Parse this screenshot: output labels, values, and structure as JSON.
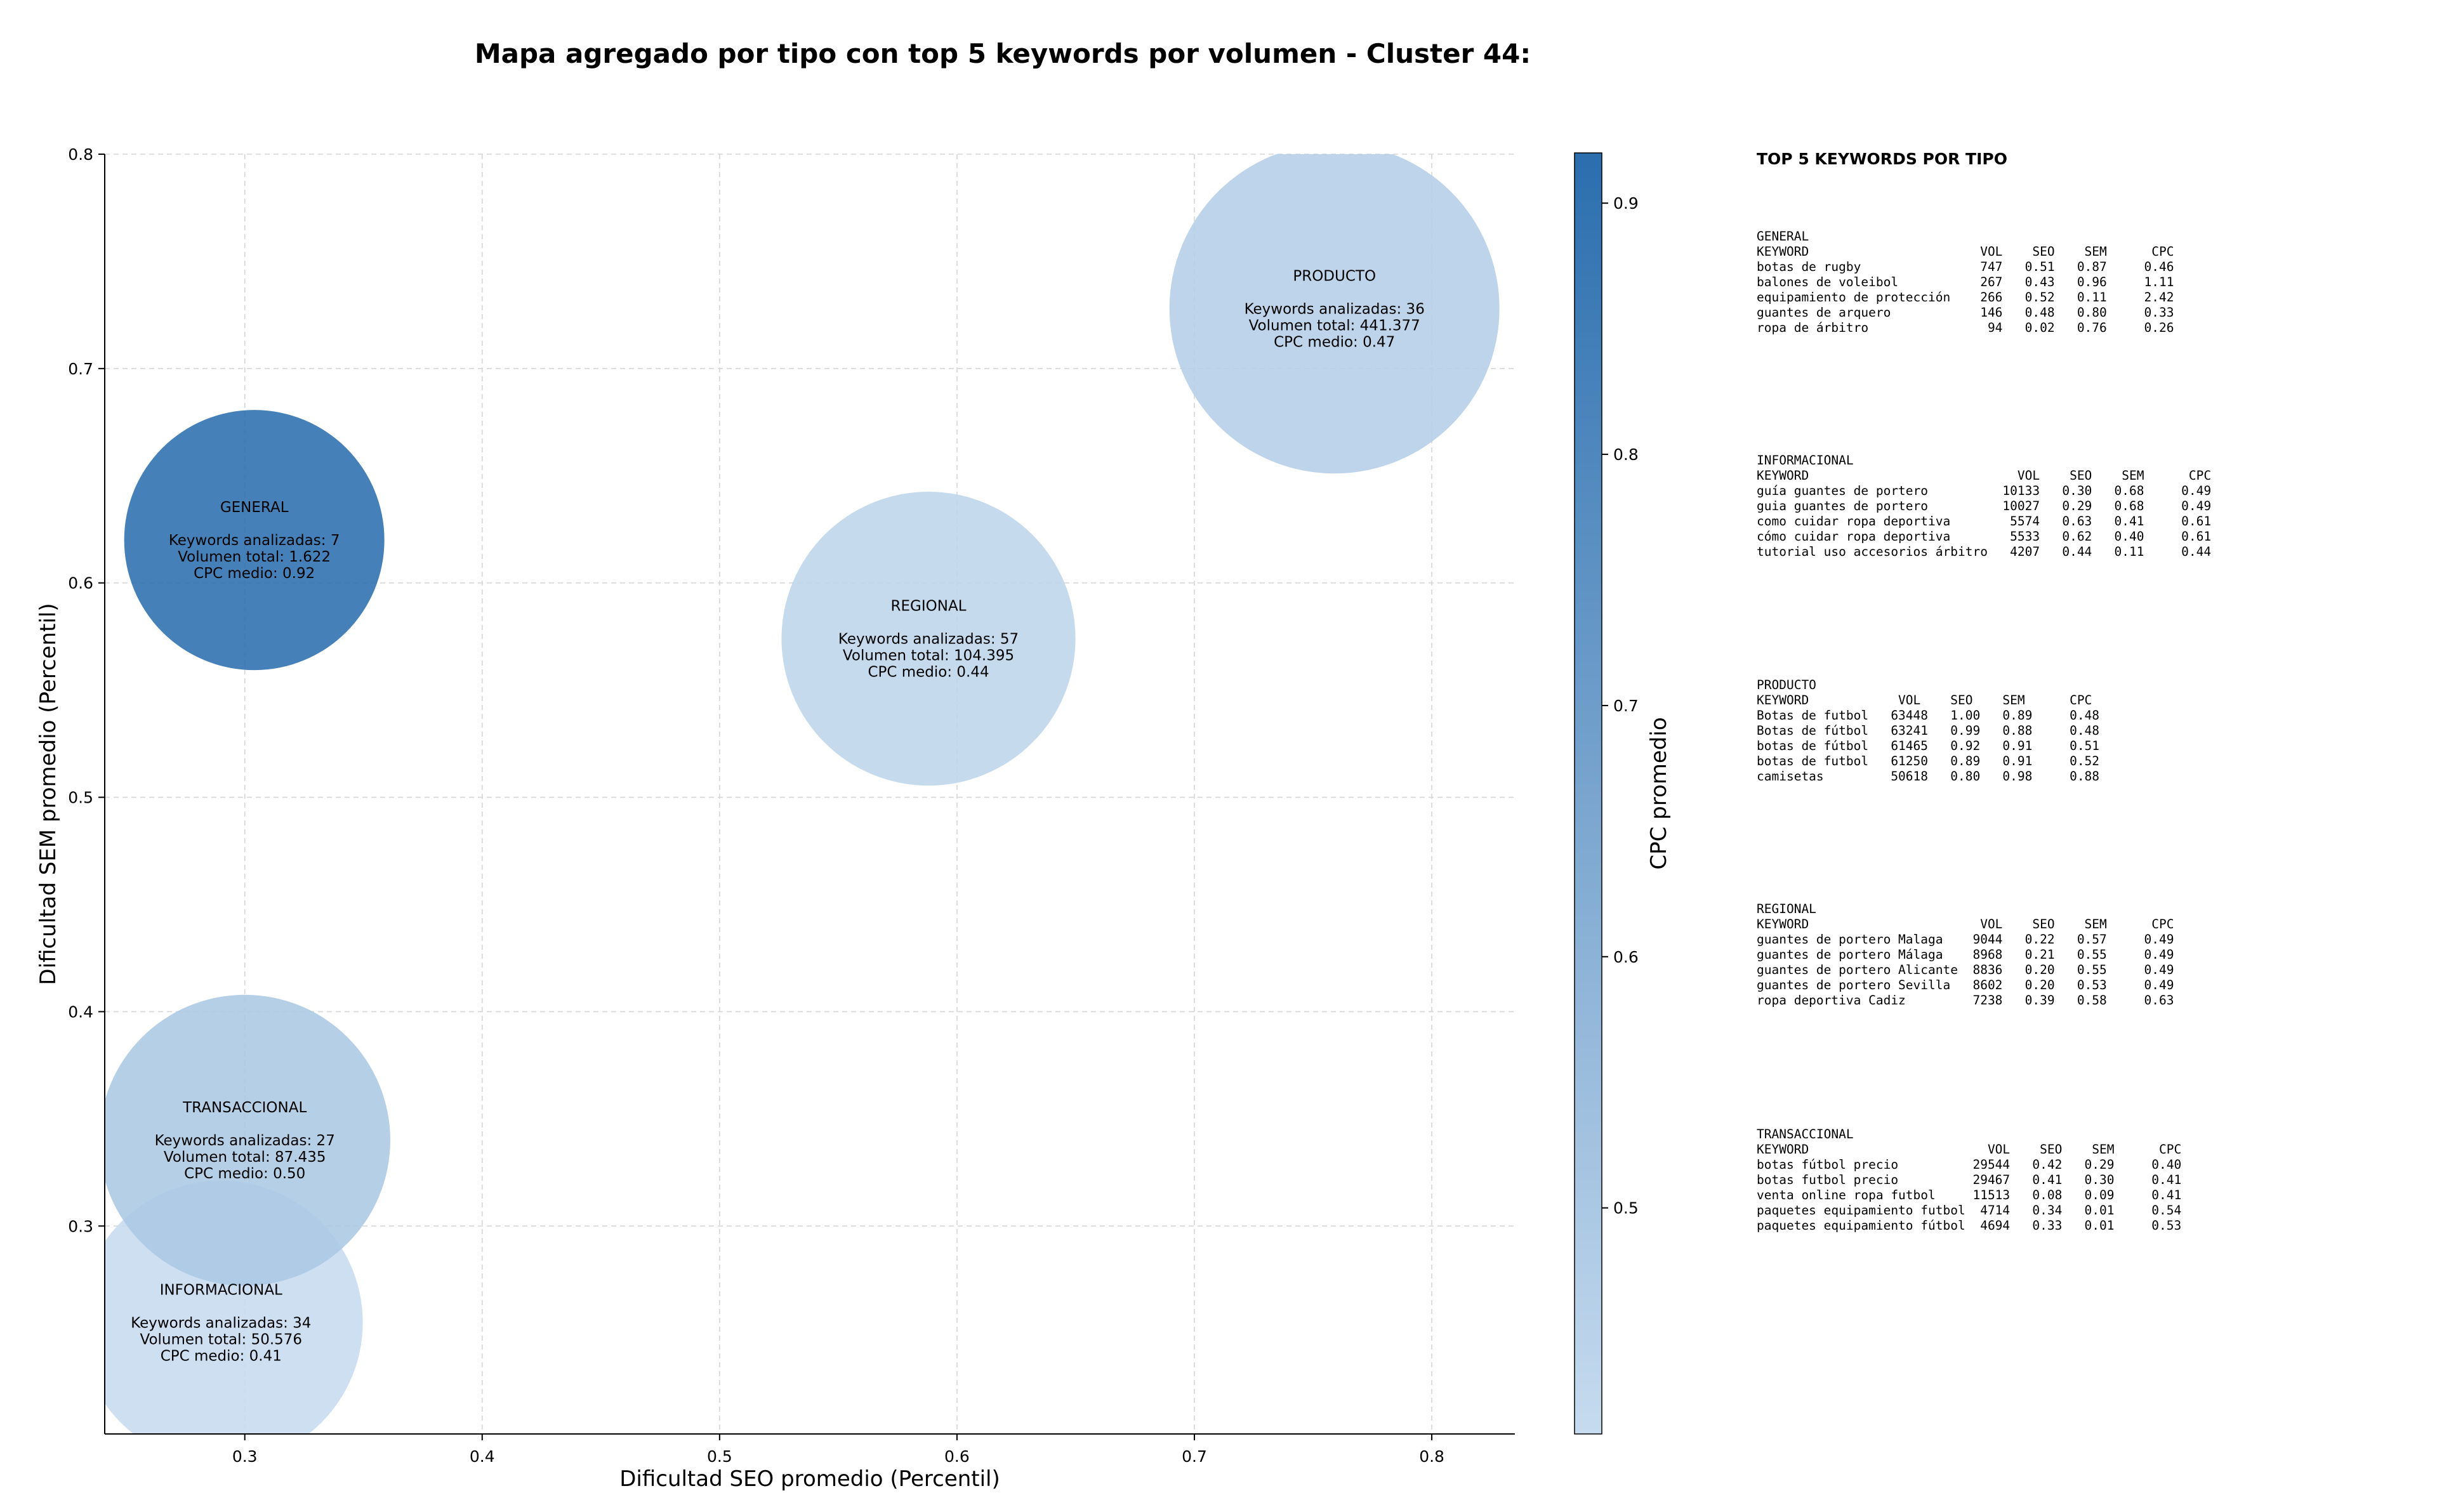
{
  "title": "Mapa agregado por tipo con top 5 keywords por volumen - Cluster 44:",
  "chart_data": {
    "type": "scatter",
    "variant": "bubble",
    "xlabel": "Dificultad SEO promedio (Percentil)",
    "ylabel": "Dificultad SEM promedio (Percentil)",
    "xlim": [
      0.241,
      0.835
    ],
    "ylim": [
      0.203,
      0.8
    ],
    "xticks": [
      "0.3",
      "0.4",
      "0.5",
      "0.6",
      "0.7",
      "0.8"
    ],
    "yticks": [
      "0.3",
      "0.4",
      "0.5",
      "0.6",
      "0.7",
      "0.8"
    ],
    "grid": true,
    "colorbar": {
      "label": "CPC promedio",
      "min": 0.41,
      "max": 0.92,
      "ticks": [
        "0.5",
        "0.6",
        "0.7",
        "0.8",
        "0.9"
      ],
      "colormap": "Blues",
      "light_color": "#c6dbef",
      "dark_color": "#2b6eae"
    },
    "points": [
      {
        "name": "GENERAL",
        "x": 0.304,
        "y": 0.62,
        "keywords": 7,
        "volume": 1622,
        "cpc": 0.92,
        "label_lines": [
          "GENERAL",
          "",
          "Keywords analizadas: 7",
          "Volumen total: 1.622",
          "CPC medio: 0.92"
        ]
      },
      {
        "name": "INFORMACIONAL",
        "x": 0.29,
        "y": 0.255,
        "keywords": 34,
        "volume": 50576,
        "cpc": 0.41,
        "label_lines": [
          "INFORMACIONAL",
          "",
          "Keywords analizadas: 34",
          "Volumen total: 50.576",
          "CPC medio: 0.41"
        ]
      },
      {
        "name": "PRODUCTO",
        "x": 0.759,
        "y": 0.728,
        "keywords": 36,
        "volume": 441377,
        "cpc": 0.47,
        "label_lines": [
          "PRODUCTO",
          "",
          "Keywords analizadas: 36",
          "Volumen total: 441.377",
          "CPC medio: 0.47"
        ]
      },
      {
        "name": "REGIONAL",
        "x": 0.588,
        "y": 0.574,
        "keywords": 57,
        "volume": 104395,
        "cpc": 0.44,
        "label_lines": [
          "REGIONAL",
          "",
          "Keywords analizadas: 57",
          "Volumen total: 104.395",
          "CPC medio: 0.44"
        ]
      },
      {
        "name": "TRANSACCIONAL",
        "x": 0.3,
        "y": 0.34,
        "keywords": 27,
        "volume": 87435,
        "cpc": 0.5,
        "label_lines": [
          "TRANSACCIONAL",
          "",
          "Keywords analizadas: 27",
          "Volumen total: 87.435",
          "CPC medio: 0.50"
        ]
      }
    ]
  },
  "side_panel": {
    "title": "TOP 5 KEYWORDS POR TIPO",
    "blocks": [
      {
        "name": "GENERAL",
        "lines": [
          "GENERAL",
          "KEYWORD                       VOL    SEO    SEM      CPC",
          "botas de rugby                747   0.51   0.87     0.46",
          "balones de voleibol           267   0.43   0.96     1.11",
          "equipamiento de protección    266   0.52   0.11     2.42",
          "guantes de arquero            146   0.48   0.80     0.33",
          "ropa de árbitro                94   0.02   0.76     0.26"
        ]
      },
      {
        "name": "INFORMACIONAL",
        "lines": [
          "INFORMACIONAL",
          "KEYWORD                            VOL    SEO    SEM      CPC",
          "guía guantes de portero          10133   0.30   0.68     0.49",
          "guia guantes de portero          10027   0.29   0.68     0.49",
          "como cuidar ropa deportiva        5574   0.63   0.41     0.61",
          "cómo cuidar ropa deportiva        5533   0.62   0.40     0.61",
          "tutorial uso accesorios árbitro   4207   0.44   0.11     0.44"
        ]
      },
      {
        "name": "PRODUCTO",
        "lines": [
          "PRODUCTO",
          "KEYWORD            VOL    SEO    SEM      CPC",
          "Botas de futbol   63448   1.00   0.89     0.48",
          "Botas de fútbol   63241   0.99   0.88     0.48",
          "botas de fútbol   61465   0.92   0.91     0.51",
          "botas de futbol   61250   0.89   0.91     0.52",
          "camisetas         50618   0.80   0.98     0.88"
        ]
      },
      {
        "name": "REGIONAL",
        "lines": [
          "REGIONAL",
          "KEYWORD                       VOL    SEO    SEM      CPC",
          "guantes de portero Malaga    9044   0.22   0.57     0.49",
          "guantes de portero Málaga    8968   0.21   0.55     0.49",
          "guantes de portero Alicante  8836   0.20   0.55     0.49",
          "guantes de portero Sevilla   8602   0.20   0.53     0.49",
          "ropa deportiva Cadiz         7238   0.39   0.58     0.63"
        ]
      },
      {
        "name": "TRANSACCIONAL",
        "lines": [
          "TRANSACCIONAL",
          "KEYWORD                        VOL    SEO    SEM      CPC",
          "botas fútbol precio          29544   0.42   0.29     0.40",
          "botas futbol precio          29467   0.41   0.30     0.41",
          "venta online ropa futbol     11513   0.08   0.09     0.41",
          "paquetes equipamiento futbol  4714   0.34   0.01     0.54",
          "paquetes equipamiento fútbol  4694   0.33   0.01     0.53"
        ]
      }
    ]
  }
}
